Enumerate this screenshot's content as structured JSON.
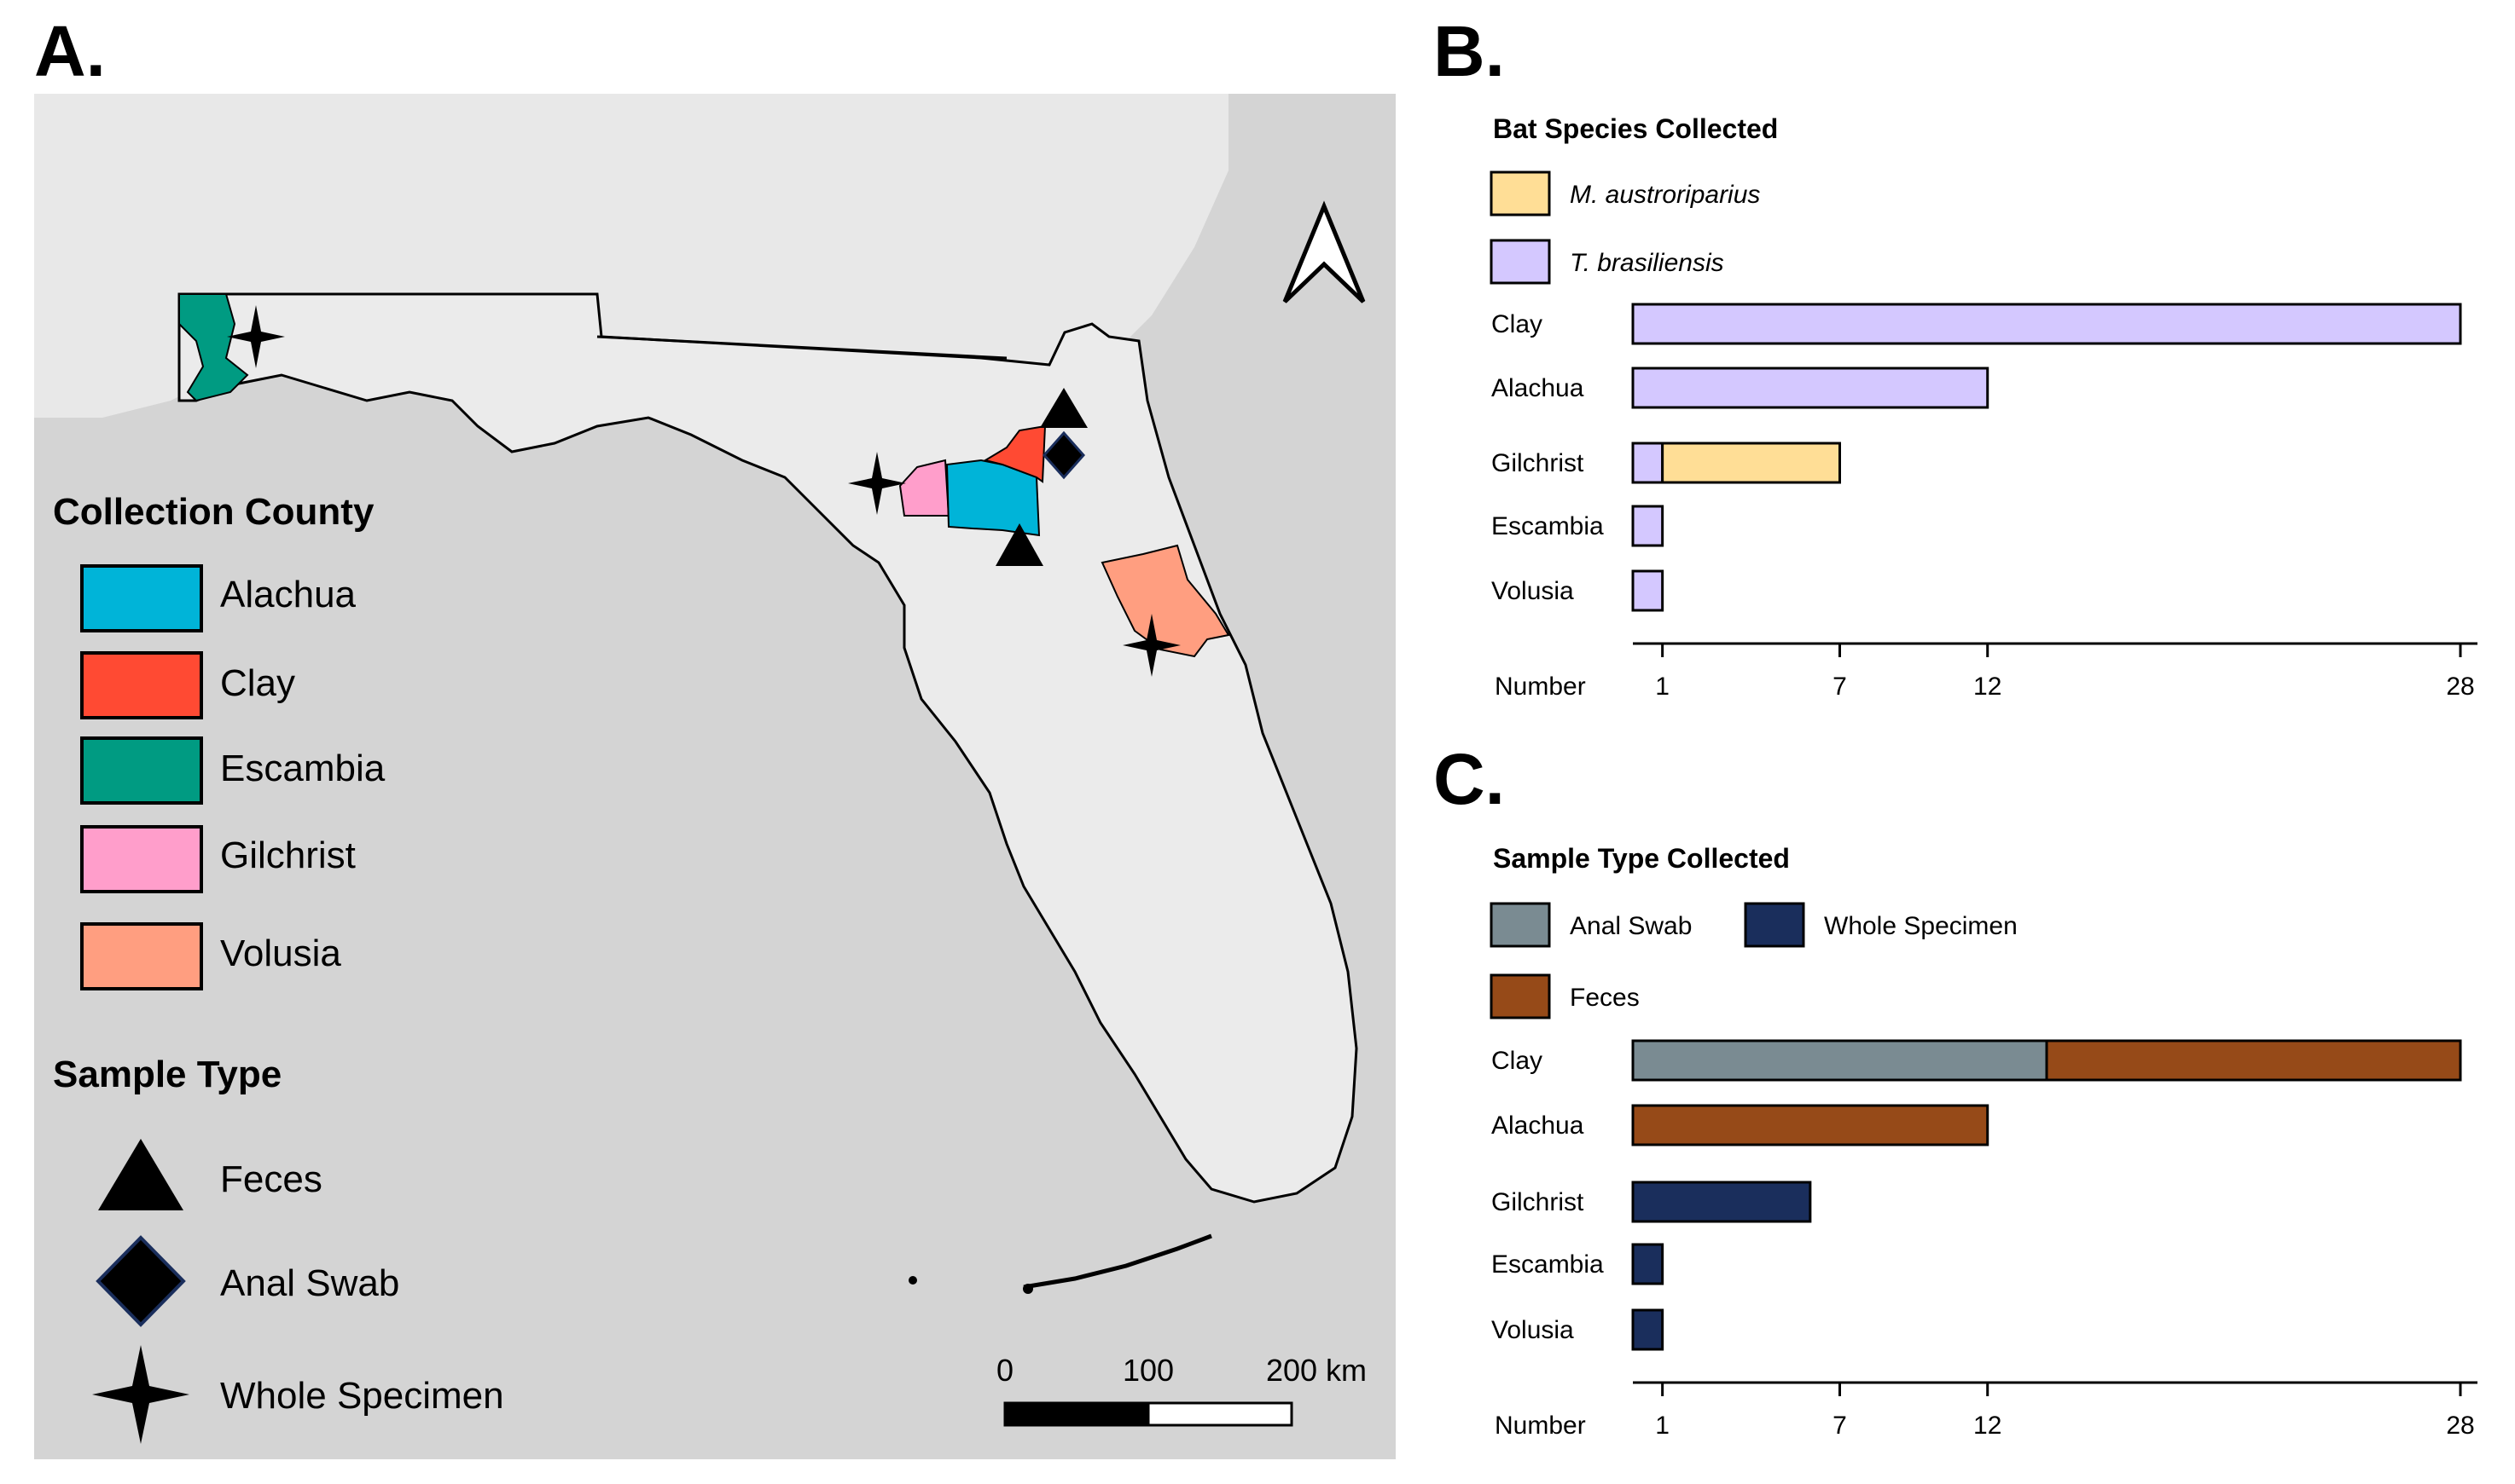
{
  "panels": {
    "a": "A.",
    "b": "B.",
    "c": "C."
  },
  "map": {
    "legend_county_title": "Collection County",
    "counties": [
      {
        "name": "Alachua",
        "color": "#00B4D8"
      },
      {
        "name": "Clay",
        "color": "#FF4A33"
      },
      {
        "name": "Escambia",
        "color": "#009B82"
      },
      {
        "name": "Gilchrist",
        "color": "#FF9ECB"
      },
      {
        "name": "Volusia",
        "color": "#FF9E80"
      }
    ],
    "legend_sample_title": "Sample Type",
    "sample_types": [
      {
        "name": "Feces",
        "icon": "triangle-icon"
      },
      {
        "name": "Anal Swab",
        "icon": "diamond-icon"
      },
      {
        "name": "Whole Specimen",
        "icon": "star-icon"
      }
    ],
    "scale_labels": [
      "0",
      "100",
      "200 km"
    ],
    "colors": {
      "background": "#D4D4D4",
      "land": "#E9E9E9",
      "outline": "#000000"
    }
  },
  "chart_data": [
    {
      "type": "bar",
      "orientation": "horizontal",
      "stacked": true,
      "title": "Bat Species Collected",
      "categories": [
        "Clay",
        "Alachua",
        "Gilchrist",
        "Escambia",
        "Volusia"
      ],
      "series": [
        {
          "name": "T. brasiliensis",
          "color": "#D4C8FF",
          "values": [
            28,
            12,
            1,
            1,
            1
          ]
        },
        {
          "name": "M. austroriparius",
          "color": "#FFDE96",
          "values": [
            0,
            0,
            6,
            0,
            0
          ]
        }
      ],
      "legend_order": [
        "M. austroriparius",
        "T. brasiliensis"
      ],
      "xlabel": "Number",
      "xticks": [
        1,
        7,
        12,
        28
      ],
      "xlim": [
        0,
        28
      ]
    },
    {
      "type": "bar",
      "orientation": "horizontal",
      "stacked": true,
      "title": "Sample Type Collected",
      "categories": [
        "Clay",
        "Alachua",
        "Gilchrist",
        "Escambia",
        "Volusia"
      ],
      "series": [
        {
          "name": "Anal Swab",
          "color": "#7A8B92",
          "values": [
            14,
            0,
            0,
            0,
            0
          ]
        },
        {
          "name": "Feces",
          "color": "#964A18",
          "values": [
            14,
            12,
            0,
            0,
            0
          ]
        },
        {
          "name": "Whole Specimen",
          "color": "#1A2E5C",
          "values": [
            0,
            0,
            6,
            1,
            1
          ]
        }
      ],
      "legend_order": [
        "Anal Swab",
        "Whole Specimen",
        "Feces"
      ],
      "xlabel": "Number",
      "xticks": [
        1,
        7,
        12,
        28
      ],
      "xlim": [
        0,
        28
      ]
    }
  ]
}
